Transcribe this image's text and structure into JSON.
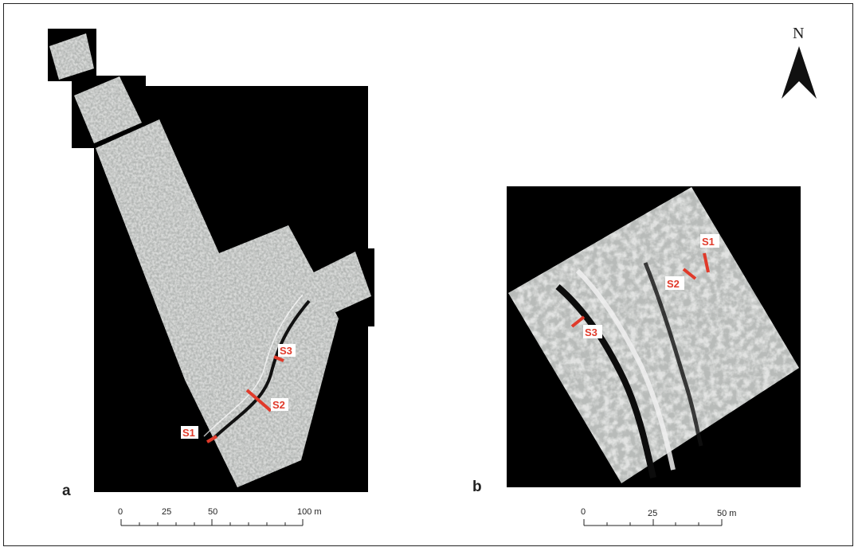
{
  "north_arrow": {
    "label": "N",
    "icon": "north-arrow-icon"
  },
  "panel_a": {
    "letter": "a",
    "sections": [
      "S1",
      "S2",
      "S3"
    ],
    "scale": {
      "ticks": [
        "0",
        "25",
        "50"
      ],
      "end_label": "100 m"
    }
  },
  "panel_b": {
    "letter": "b",
    "sections": [
      "S1",
      "S2",
      "S3"
    ],
    "scale": {
      "ticks": [
        "0",
        "25"
      ],
      "end_label": "50 m"
    }
  },
  "colors": {
    "section_marker": "#e03a2a",
    "background_black": "#000000",
    "survey_grey": "#b5b8b6"
  }
}
